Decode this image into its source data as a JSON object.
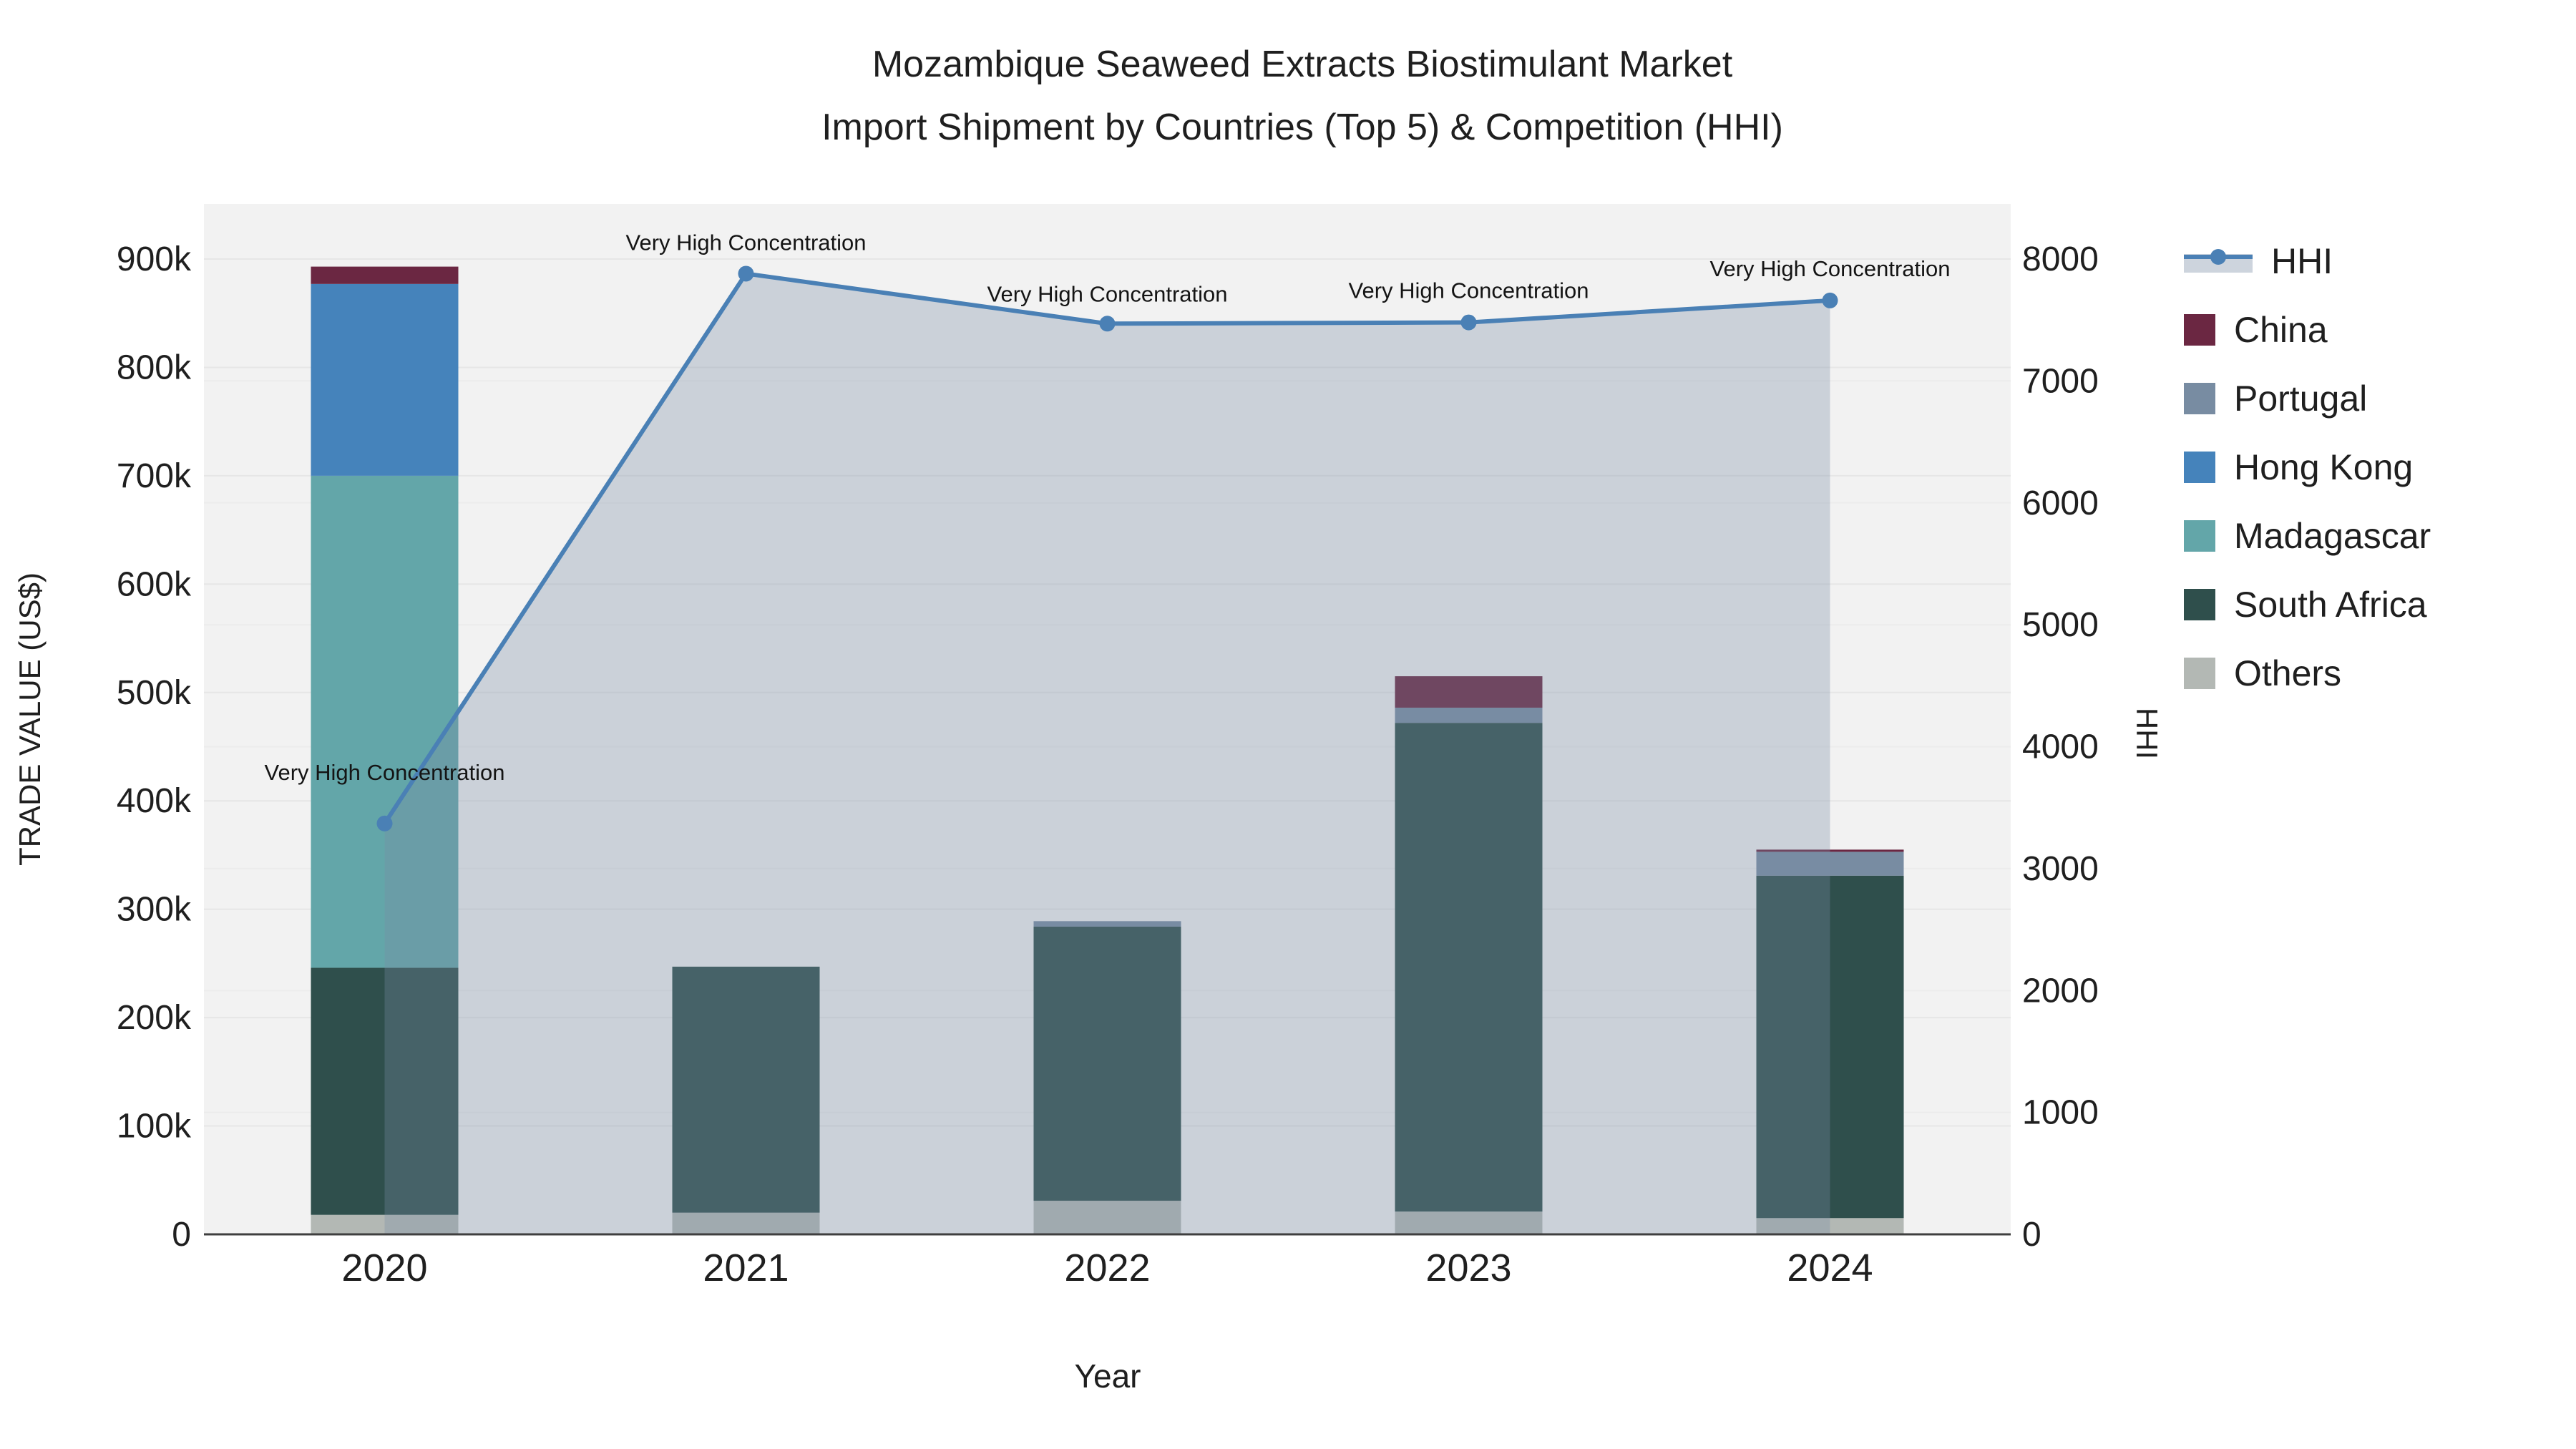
{
  "title": {
    "line1": "Mozambique Seaweed Extracts Biostimulant Market",
    "line2": "Import Shipment by Countries (Top 5) & Competition (HHI)"
  },
  "axes": {
    "x": {
      "title": "Year",
      "categories": [
        "2020",
        "2021",
        "2022",
        "2023",
        "2024"
      ]
    },
    "y_left": {
      "title": "TRADE VALUE (US$)",
      "ticks": [
        "0",
        "100k",
        "200k",
        "300k",
        "400k",
        "500k",
        "600k",
        "700k",
        "800k",
        "900k"
      ]
    },
    "y_right": {
      "title": "HHI",
      "ticks": [
        "0",
        "1000",
        "2000",
        "3000",
        "4000",
        "5000",
        "6000",
        "7000",
        "8000"
      ]
    }
  },
  "legend_order": [
    "HHI",
    "China",
    "Portugal",
    "Hong Kong",
    "Madagascar",
    "South Africa",
    "Others"
  ],
  "chart_data": {
    "type": "bar",
    "subtype": "stacked-bars-with-line-overlay",
    "title": "Mozambique Seaweed Extracts Biostimulant Market Import Shipment by Countries (Top 5) & Competition (HHI)",
    "xlabel": "Year",
    "ylabel": "TRADE VALUE (US$)",
    "y2label": "HHI",
    "categories": [
      "2020",
      "2021",
      "2022",
      "2023",
      "2024"
    ],
    "series": [
      {
        "name": "China",
        "color": "#6b2742",
        "values": [
          16000,
          0,
          0,
          29000,
          2000
        ]
      },
      {
        "name": "Portugal",
        "color": "#788ca2",
        "values": [
          0,
          0,
          5000,
          14000,
          22000
        ]
      },
      {
        "name": "Hong Kong",
        "color": "#4583bb",
        "values": [
          177000,
          0,
          0,
          0,
          0
        ]
      },
      {
        "name": "Madagascar",
        "color": "#63a6a9",
        "values": [
          454000,
          0,
          0,
          0,
          0
        ]
      },
      {
        "name": "South Africa",
        "color": "#2f4f4c",
        "values": [
          228000,
          227000,
          253000,
          451000,
          316000
        ]
      },
      {
        "name": "Others",
        "color": "#b3b8b4",
        "values": [
          18000,
          20000,
          31000,
          21000,
          15000
        ]
      }
    ],
    "line": {
      "name": "HHI",
      "color": "#4a80b5",
      "fill_color": "rgba(120,140,165,0.32)",
      "values": [
        3370,
        7880,
        7470,
        7480,
        7660
      ],
      "annotation": "Very High Concentration"
    },
    "ylim_left": [
      0,
      950000
    ],
    "ylim_right": [
      0,
      8450
    ],
    "grid": true,
    "legend_position": "right"
  },
  "colors": {
    "plot_bg": "#f2f2f2",
    "grid_left": "#e6e6e6",
    "grid_right": "#ececec",
    "axis_line": "#3f3f3f",
    "text": "#1f1f1f"
  }
}
